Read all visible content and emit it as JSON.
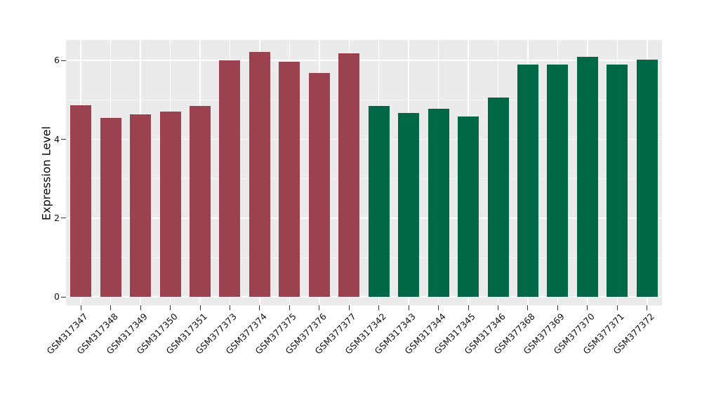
{
  "chart_data": {
    "type": "bar",
    "ylabel": "Expression Level",
    "xlabel": "",
    "yticks": [
      0,
      2,
      4,
      6
    ],
    "yminorticks": [
      1,
      3,
      5
    ],
    "ylim": [
      -0.21,
      6.52
    ],
    "grid": "on",
    "legend": "none",
    "panel_bg": "#EBEBEB",
    "grid_color": "#FFFFFF",
    "figure_bg": "#FFFFFF",
    "tick_color": "#333333",
    "label_color": "#111111",
    "group_colors": {
      "groupA": "#9A424F",
      "groupB": "#006747"
    },
    "categories": [
      "GSM317347",
      "GSM317348",
      "GSM317349",
      "GSM317350",
      "GSM317351",
      "GSM377373",
      "GSM377374",
      "GSM377375",
      "GSM377376",
      "GSM377377",
      "GSM317342",
      "GSM317343",
      "GSM317344",
      "GSM317345",
      "GSM317346",
      "GSM377368",
      "GSM377369",
      "GSM377370",
      "GSM377371",
      "GSM377372"
    ],
    "bars": [
      {
        "label": "GSM317347",
        "value": 4.87,
        "group": "groupA"
      },
      {
        "label": "GSM317348",
        "value": 4.55,
        "group": "groupA"
      },
      {
        "label": "GSM317349",
        "value": 4.63,
        "group": "groupA"
      },
      {
        "label": "GSM317350",
        "value": 4.71,
        "group": "groupA"
      },
      {
        "label": "GSM317351",
        "value": 4.85,
        "group": "groupA"
      },
      {
        "label": "GSM377373",
        "value": 6.0,
        "group": "groupA"
      },
      {
        "label": "GSM377374",
        "value": 6.22,
        "group": "groupA"
      },
      {
        "label": "GSM377375",
        "value": 5.96,
        "group": "groupA"
      },
      {
        "label": "GSM377376",
        "value": 5.69,
        "group": "groupA"
      },
      {
        "label": "GSM377377",
        "value": 6.19,
        "group": "groupA"
      },
      {
        "label": "GSM317342",
        "value": 4.84,
        "group": "groupB"
      },
      {
        "label": "GSM317343",
        "value": 4.67,
        "group": "groupB"
      },
      {
        "label": "GSM317344",
        "value": 4.77,
        "group": "groupB"
      },
      {
        "label": "GSM317345",
        "value": 4.58,
        "group": "groupB"
      },
      {
        "label": "GSM317346",
        "value": 5.06,
        "group": "groupB"
      },
      {
        "label": "GSM377368",
        "value": 5.9,
        "group": "groupB"
      },
      {
        "label": "GSM377369",
        "value": 5.9,
        "group": "groupB"
      },
      {
        "label": "GSM377370",
        "value": 6.09,
        "group": "groupB"
      },
      {
        "label": "GSM377371",
        "value": 5.89,
        "group": "groupB"
      },
      {
        "label": "GSM377372",
        "value": 6.02,
        "group": "groupB"
      }
    ]
  }
}
